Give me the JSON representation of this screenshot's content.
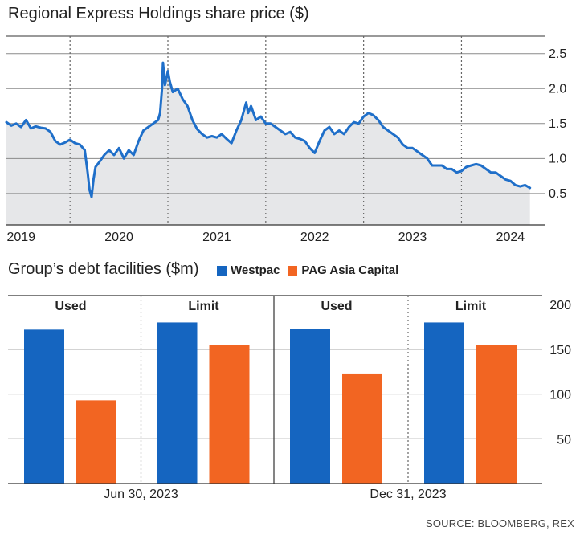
{
  "colors": {
    "westpac": "#1565c0",
    "pag": "#f26522",
    "line": "#1f6fc9",
    "area": "#e6e7e9",
    "grid": "#8a8a8a"
  },
  "chart_data": [
    {
      "type": "line",
      "title": "Regional Express Holdings share price ($)",
      "y_ticks": [
        2.5,
        2.0,
        1.5,
        1.0,
        0.5
      ],
      "y_tick_labels": [
        "2.5",
        "2.0",
        "1.5",
        "1.0",
        "0.5"
      ],
      "ylim": [
        0.05,
        2.75
      ],
      "x_tick_labels": [
        "2019",
        "2020",
        "2021",
        "2022",
        "2023",
        "2024"
      ],
      "x_range": [
        2018.85,
        2024.35
      ],
      "year_dividers": [
        2019.5,
        2020.5,
        2021.5,
        2022.5,
        2023.5
      ],
      "series": [
        {
          "points": [
            [
              2018.85,
              1.52
            ],
            [
              2018.9,
              1.47
            ],
            [
              2018.95,
              1.5
            ],
            [
              2019.0,
              1.45
            ],
            [
              2019.05,
              1.55
            ],
            [
              2019.1,
              1.43
            ],
            [
              2019.15,
              1.46
            ],
            [
              2019.2,
              1.44
            ],
            [
              2019.25,
              1.43
            ],
            [
              2019.3,
              1.38
            ],
            [
              2019.35,
              1.25
            ],
            [
              2019.4,
              1.2
            ],
            [
              2019.45,
              1.23
            ],
            [
              2019.5,
              1.27
            ],
            [
              2019.55,
              1.22
            ],
            [
              2019.6,
              1.2
            ],
            [
              2019.65,
              1.12
            ],
            [
              2019.68,
              0.8
            ],
            [
              2019.7,
              0.55
            ],
            [
              2019.72,
              0.45
            ],
            [
              2019.74,
              0.7
            ],
            [
              2019.76,
              0.88
            ],
            [
              2019.8,
              0.95
            ],
            [
              2019.85,
              1.05
            ],
            [
              2019.9,
              1.12
            ],
            [
              2019.95,
              1.05
            ],
            [
              2020.0,
              1.15
            ],
            [
              2020.05,
              1.0
            ],
            [
              2020.1,
              1.12
            ],
            [
              2020.15,
              1.05
            ],
            [
              2020.2,
              1.25
            ],
            [
              2020.25,
              1.4
            ],
            [
              2020.3,
              1.45
            ],
            [
              2020.35,
              1.5
            ],
            [
              2020.4,
              1.55
            ],
            [
              2020.42,
              1.65
            ],
            [
              2020.44,
              2.0
            ],
            [
              2020.45,
              2.37
            ],
            [
              2020.47,
              2.05
            ],
            [
              2020.5,
              2.25
            ],
            [
              2020.52,
              2.1
            ],
            [
              2020.55,
              1.95
            ],
            [
              2020.6,
              2.0
            ],
            [
              2020.65,
              1.85
            ],
            [
              2020.7,
              1.75
            ],
            [
              2020.75,
              1.55
            ],
            [
              2020.8,
              1.42
            ],
            [
              2020.85,
              1.35
            ],
            [
              2020.9,
              1.3
            ],
            [
              2020.95,
              1.32
            ],
            [
              2021.0,
              1.3
            ],
            [
              2021.05,
              1.35
            ],
            [
              2021.1,
              1.28
            ],
            [
              2021.15,
              1.22
            ],
            [
              2021.2,
              1.4
            ],
            [
              2021.25,
              1.55
            ],
            [
              2021.28,
              1.7
            ],
            [
              2021.3,
              1.8
            ],
            [
              2021.32,
              1.65
            ],
            [
              2021.35,
              1.75
            ],
            [
              2021.4,
              1.55
            ],
            [
              2021.45,
              1.6
            ],
            [
              2021.5,
              1.5
            ],
            [
              2021.55,
              1.5
            ],
            [
              2021.6,
              1.45
            ],
            [
              2021.65,
              1.4
            ],
            [
              2021.7,
              1.35
            ],
            [
              2021.75,
              1.38
            ],
            [
              2021.8,
              1.3
            ],
            [
              2021.85,
              1.28
            ],
            [
              2021.9,
              1.25
            ],
            [
              2021.95,
              1.15
            ],
            [
              2022.0,
              1.08
            ],
            [
              2022.05,
              1.25
            ],
            [
              2022.1,
              1.4
            ],
            [
              2022.15,
              1.45
            ],
            [
              2022.2,
              1.35
            ],
            [
              2022.25,
              1.4
            ],
            [
              2022.3,
              1.35
            ],
            [
              2022.35,
              1.45
            ],
            [
              2022.4,
              1.52
            ],
            [
              2022.45,
              1.5
            ],
            [
              2022.5,
              1.6
            ],
            [
              2022.55,
              1.65
            ],
            [
              2022.6,
              1.62
            ],
            [
              2022.65,
              1.55
            ],
            [
              2022.7,
              1.45
            ],
            [
              2022.75,
              1.4
            ],
            [
              2022.8,
              1.35
            ],
            [
              2022.85,
              1.3
            ],
            [
              2022.9,
              1.2
            ],
            [
              2022.95,
              1.15
            ],
            [
              2023.0,
              1.15
            ],
            [
              2023.05,
              1.1
            ],
            [
              2023.1,
              1.05
            ],
            [
              2023.15,
              1.0
            ],
            [
              2023.2,
              0.9
            ],
            [
              2023.25,
              0.9
            ],
            [
              2023.3,
              0.9
            ],
            [
              2023.35,
              0.85
            ],
            [
              2023.4,
              0.85
            ],
            [
              2023.45,
              0.8
            ],
            [
              2023.5,
              0.82
            ],
            [
              2023.55,
              0.88
            ],
            [
              2023.6,
              0.9
            ],
            [
              2023.65,
              0.92
            ],
            [
              2023.7,
              0.9
            ],
            [
              2023.75,
              0.85
            ],
            [
              2023.8,
              0.8
            ],
            [
              2023.85,
              0.8
            ],
            [
              2023.9,
              0.75
            ],
            [
              2023.95,
              0.7
            ],
            [
              2024.0,
              0.68
            ],
            [
              2024.05,
              0.62
            ],
            [
              2024.1,
              0.6
            ],
            [
              2024.15,
              0.62
            ],
            [
              2024.2,
              0.58
            ]
          ]
        }
      ]
    },
    {
      "type": "bar",
      "title": "Group’s debt facilities ($m)",
      "legend": [
        {
          "name": "Westpac",
          "color": "#1565c0"
        },
        {
          "name": "PAG Asia Capital",
          "color": "#f26522"
        }
      ],
      "y_ticks": [
        200,
        150,
        100,
        50
      ],
      "y_tick_labels": [
        "200",
        "150",
        "100",
        "50"
      ],
      "ylim": [
        0,
        210
      ],
      "panels": [
        {
          "label": "Jun 30, 2023",
          "groups": [
            {
              "label": "Used",
              "westpac": 172,
              "pag": 93
            },
            {
              "label": "Limit",
              "westpac": 180,
              "pag": 155
            }
          ]
        },
        {
          "label": "Dec 31, 2023",
          "groups": [
            {
              "label": "Used",
              "westpac": 173,
              "pag": 123
            },
            {
              "label": "Limit",
              "westpac": 180,
              "pag": 155
            }
          ]
        }
      ]
    }
  ],
  "source": "SOURCE: BLOOMBERG, REX"
}
